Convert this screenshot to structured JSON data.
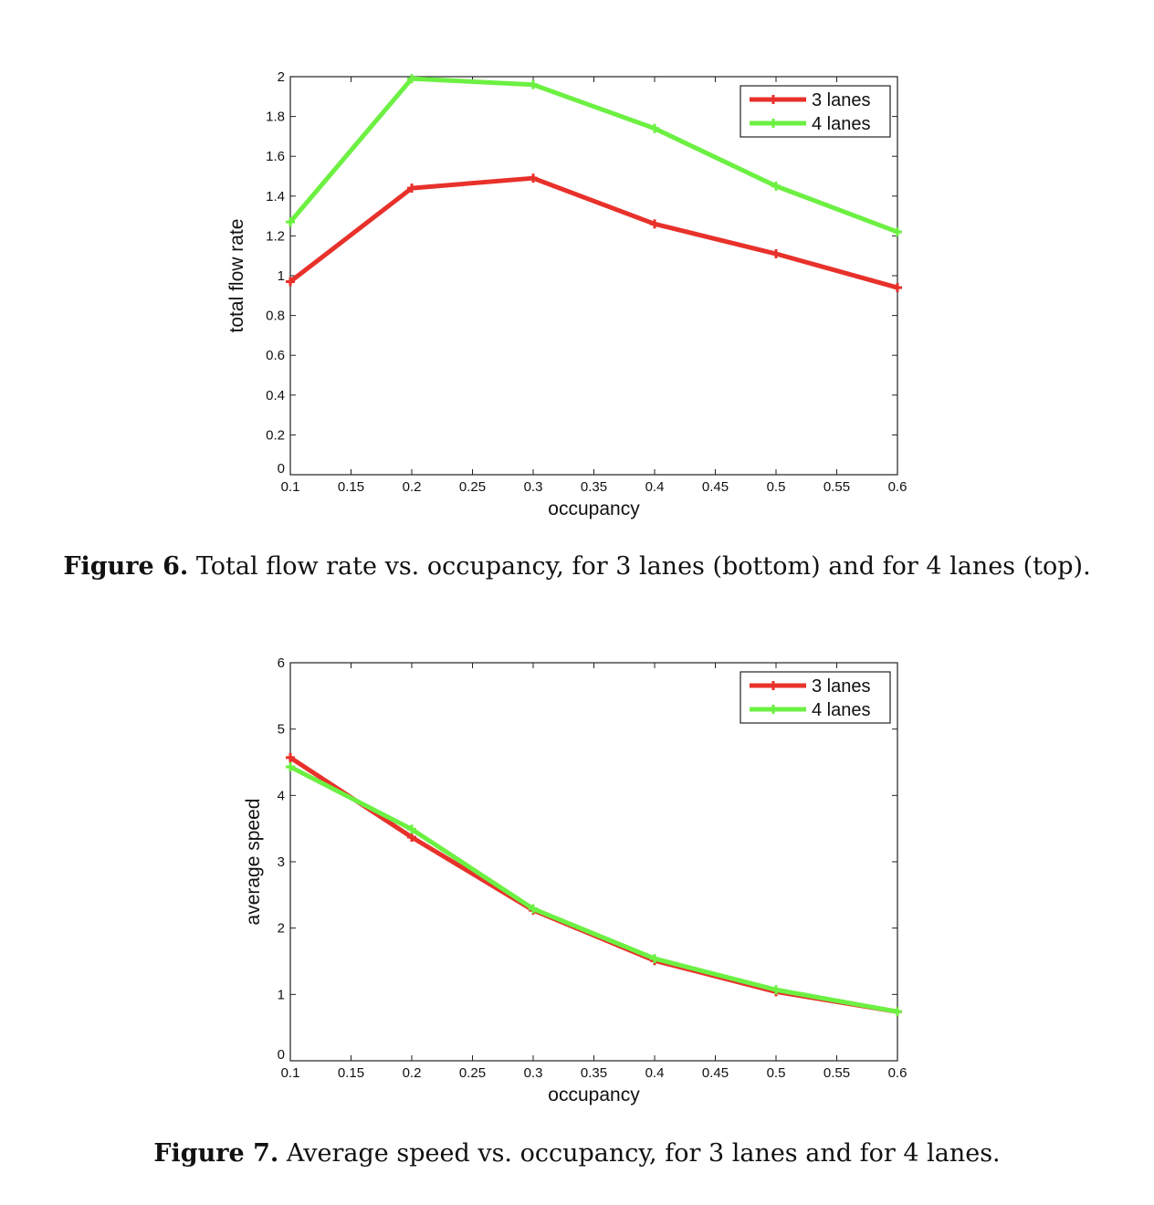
{
  "figures": [
    {
      "caption_label": "Figure 6.",
      "caption_text": "Total flow rate vs. occupancy, for 3 lanes (bottom) and for 4 lanes (top).",
      "chart_data": {
        "type": "line",
        "xlabel": "occupancy",
        "ylabel": "total flow rate",
        "xlim": [
          0.1,
          0.6
        ],
        "ylim": [
          0,
          2
        ],
        "xticks": [
          "0.1",
          "0.15",
          "0.2",
          "0.25",
          "0.3",
          "0.35",
          "0.4",
          "0.45",
          "0.5",
          "0.55",
          "0.6"
        ],
        "yticks": [
          "0",
          "0.2",
          "0.4",
          "0.6",
          "0.8",
          "1",
          "1.2",
          "1.4",
          "1.6",
          "1.8",
          "2"
        ],
        "x": [
          0.1,
          0.2,
          0.3,
          0.4,
          0.5,
          0.6
        ],
        "series": [
          {
            "name": "3 lanes",
            "color": "#e8312b",
            "values": [
              0.97,
              1.44,
              1.49,
              1.26,
              1.11,
              0.94
            ]
          },
          {
            "name": "4 lanes",
            "color": "#6cf042",
            "values": [
              1.27,
              1.99,
              1.96,
              1.74,
              1.45,
              1.22
            ]
          }
        ],
        "legend": "top-right",
        "grid": false
      }
    },
    {
      "caption_label": "Figure 7.",
      "caption_text": "Average speed vs. occupancy, for 3 lanes and for 4 lanes.",
      "chart_data": {
        "type": "line",
        "xlabel": "occupancy",
        "ylabel": "average speed",
        "xlim": [
          0.1,
          0.6
        ],
        "ylim": [
          0,
          6
        ],
        "xticks": [
          "0.1",
          "0.15",
          "0.2",
          "0.25",
          "0.3",
          "0.35",
          "0.4",
          "0.45",
          "0.5",
          "0.55",
          "0.6"
        ],
        "yticks": [
          "0",
          "1",
          "2",
          "3",
          "4",
          "5",
          "6"
        ],
        "x": [
          0.1,
          0.2,
          0.3,
          0.4,
          0.5,
          0.6
        ],
        "series": [
          {
            "name": "3 lanes",
            "color": "#e8312b",
            "values": [
              4.57,
              3.37,
              2.27,
              1.51,
              1.04,
              0.74
            ]
          },
          {
            "name": "4 lanes",
            "color": "#6cf042",
            "values": [
              4.43,
              3.49,
              2.29,
              1.54,
              1.07,
              0.74
            ]
          }
        ],
        "legend": "top-right",
        "grid": false
      }
    }
  ]
}
